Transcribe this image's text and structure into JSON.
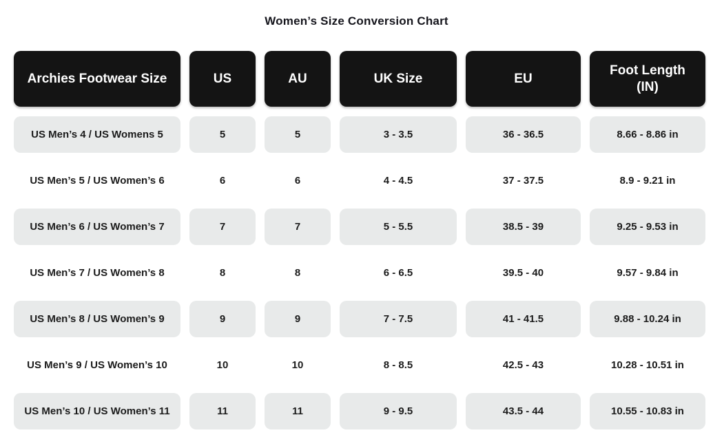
{
  "title": "Women’s Size Conversion Chart",
  "chart_data": {
    "type": "table",
    "title": "Women’s Size Conversion Chart",
    "columns": [
      "Archies Footwear Size",
      "US",
      "AU",
      "UK Size",
      "EU",
      "Foot Length (IN)"
    ],
    "rows": [
      [
        "US Men’s 4 / US Womens 5",
        "5",
        "5",
        "3 - 3.5",
        "36 - 36.5",
        "8.66 - 8.86 in"
      ],
      [
        "US Men’s 5 / US Women’s 6",
        "6",
        "6",
        "4 - 4.5",
        "37 - 37.5",
        "8.9 - 9.21 in"
      ],
      [
        "US Men’s 6 / US Women’s 7",
        "7",
        "7",
        "5 - 5.5",
        "38.5 - 39",
        "9.25 - 9.53 in"
      ],
      [
        "US Men’s 7 / US Women’s 8",
        "8",
        "8",
        "6 - 6.5",
        "39.5 - 40",
        "9.57 - 9.84 in"
      ],
      [
        "US Men’s 8 / US Women’s 9",
        "9",
        "9",
        "7 - 7.5",
        "41 - 41.5",
        "9.88 - 10.24 in"
      ],
      [
        "US Men’s 9 / US Women’s 10",
        "10",
        "10",
        "8 - 8.5",
        "42.5 - 43",
        "10.28 - 10.51 in"
      ],
      [
        "US Men’s 10 / US Women’s 11",
        "11",
        "11",
        "9 - 9.5",
        "43.5 - 44",
        "10.55 - 10.83 in"
      ]
    ],
    "layout": {
      "shaded_row_indices": [
        0,
        2,
        4,
        6
      ],
      "header_style": "black-rounded-pills",
      "row_style": "alternating gray pills / plain white"
    }
  },
  "colors": {
    "page_bg": "#ffffff",
    "header_bg": "#141414",
    "header_text": "#ffffff",
    "shaded_row_bg": "#e8eaea",
    "body_text": "#1b1b1b",
    "title_text": "#15151c"
  }
}
